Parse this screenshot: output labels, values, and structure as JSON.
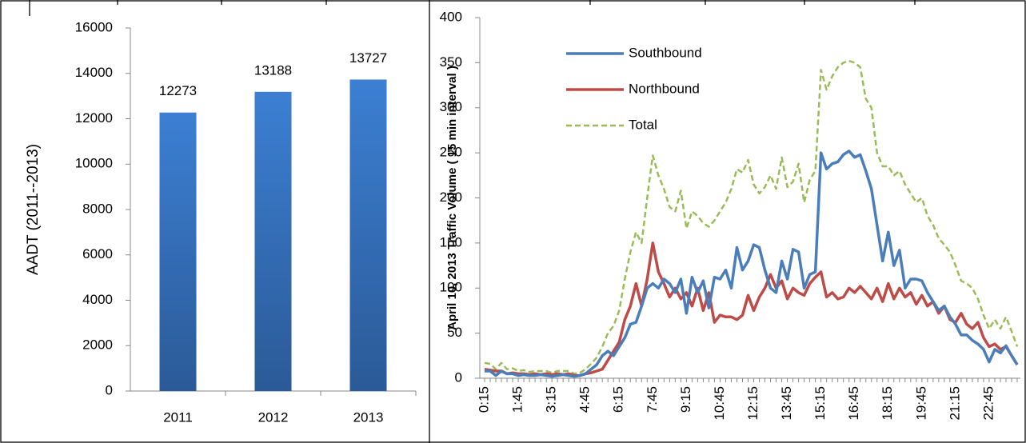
{
  "chart_data": [
    {
      "type": "bar",
      "y_label": "AADT (2011--2013)",
      "categories": [
        "2011",
        "2012",
        "2013"
      ],
      "values": [
        12273,
        13188,
        13727
      ],
      "color": "#3a78c8",
      "ylim": [
        0,
        16000
      ],
      "yticks": [
        0,
        2000,
        4000,
        6000,
        8000,
        10000,
        12000,
        14000,
        16000
      ]
    },
    {
      "type": "line",
      "y_label": "April 10, 2013 Traffic Volume ( 15 min interval )",
      "categories": [
        "0:15",
        null,
        null,
        null,
        null,
        null,
        "1:45",
        null,
        null,
        null,
        null,
        null,
        "3:15",
        null,
        null,
        null,
        null,
        null,
        "4:45",
        null,
        null,
        null,
        null,
        null,
        "6:15",
        null,
        null,
        null,
        null,
        null,
        "7:45",
        null,
        null,
        null,
        null,
        null,
        "9:15",
        null,
        null,
        null,
        null,
        null,
        "10:45",
        null,
        null,
        null,
        null,
        null,
        "12:15",
        null,
        null,
        null,
        null,
        null,
        "13:45",
        null,
        null,
        null,
        null,
        null,
        "15:15",
        null,
        null,
        null,
        null,
        null,
        "16:45",
        null,
        null,
        null,
        null,
        null,
        "18:15",
        null,
        null,
        null,
        null,
        null,
        "19:45",
        null,
        null,
        null,
        null,
        null,
        "21:15",
        null,
        null,
        null,
        null,
        null,
        "22:45",
        null,
        null,
        null,
        null,
        null
      ],
      "series": [
        {
          "name": "Southbound",
          "color": "#4a7ebb",
          "style": "solid",
          "values": [
            8,
            8,
            3,
            8,
            5,
            5,
            3,
            4,
            3,
            3,
            4,
            3,
            2,
            3,
            4,
            3,
            2,
            3,
            5,
            10,
            15,
            25,
            30,
            25,
            35,
            45,
            60,
            62,
            80,
            100,
            105,
            100,
            110,
            105,
            95,
            110,
            72,
            112,
            95,
            108,
            78,
            112,
            110,
            120,
            100,
            145,
            120,
            130,
            148,
            145,
            120,
            100,
            95,
            130,
            110,
            143,
            140,
            100,
            115,
            118,
            250,
            232,
            238,
            240,
            248,
            252,
            245,
            248,
            230,
            210,
            170,
            130,
            162,
            125,
            142,
            100,
            110,
            110,
            108,
            95,
            85,
            75,
            80,
            68,
            60,
            48,
            48,
            42,
            38,
            32,
            18,
            32,
            28,
            36,
            25,
            15
          ]
        },
        {
          "name": "Northbound",
          "color": "#be4b48",
          "style": "solid",
          "values": [
            10,
            9,
            8,
            8,
            5,
            6,
            5,
            5,
            4,
            5,
            4,
            5,
            4,
            5,
            4,
            5,
            3,
            3,
            5,
            6,
            8,
            10,
            20,
            30,
            40,
            65,
            80,
            105,
            80,
            110,
            150,
            118,
            105,
            90,
            100,
            88,
            95,
            80,
            100,
            75,
            95,
            62,
            70,
            68,
            68,
            65,
            70,
            92,
            75,
            90,
            100,
            115,
            100,
            108,
            88,
            100,
            95,
            92,
            105,
            112,
            118,
            90,
            95,
            88,
            90,
            100,
            95,
            102,
            95,
            88,
            100,
            85,
            105,
            88,
            100,
            90,
            95,
            82,
            92,
            80,
            85,
            72,
            80,
            65,
            62,
            72,
            60,
            55,
            62,
            45,
            35,
            38,
            32,
            35,
            25,
            15
          ]
        },
        {
          "name": "Total",
          "color": "#9bbb59",
          "style": "dashed",
          "values": [
            17,
            16,
            10,
            17,
            10,
            11,
            8,
            9,
            7,
            8,
            8,
            8,
            6,
            8,
            8,
            8,
            5,
            6,
            10,
            16,
            23,
            35,
            50,
            58,
            75,
            110,
            140,
            162,
            150,
            200,
            247,
            225,
            210,
            190,
            185,
            208,
            166,
            185,
            180,
            172,
            168,
            175,
            185,
            195,
            210,
            232,
            228,
            242,
            215,
            205,
            212,
            225,
            210,
            245,
            212,
            218,
            238,
            195,
            220,
            230,
            342,
            320,
            335,
            345,
            350,
            352,
            350,
            345,
            310,
            300,
            250,
            235,
            235,
            225,
            230,
            215,
            205,
            195,
            200,
            180,
            170,
            155,
            148,
            140,
            125,
            108,
            105,
            100,
            88,
            70,
            55,
            65,
            55,
            68,
            52,
            35
          ]
        }
      ],
      "ylim": [
        0,
        400
      ],
      "yticks": [
        0,
        50,
        100,
        150,
        200,
        250,
        300,
        350,
        400
      ],
      "legend": "upper left"
    }
  ]
}
